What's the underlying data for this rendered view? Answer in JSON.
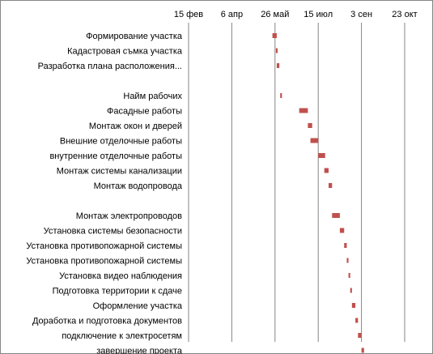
{
  "chart_data": {
    "type": "bar",
    "subtype": "gantt",
    "x_ticks": [
      "15 фев",
      "6 апр",
      "26 май",
      "15 июл",
      "3 сен",
      "23 окт"
    ],
    "tick_dates": [
      "2014-02-15",
      "2014-04-06",
      "2014-05-26",
      "2014-07-15",
      "2014-09-03",
      "2014-10-23"
    ],
    "xlim": [
      "2014-02-15",
      "2014-11-20"
    ],
    "bar_color": "#c0504d",
    "grid": true,
    "legend": "none",
    "tasks": [
      {
        "label": "Формирование участка",
        "start": "2014-05-23",
        "end": "2014-05-28"
      },
      {
        "label": "Кадастровая съмка участка",
        "start": "2014-05-27",
        "end": "2014-05-29"
      },
      {
        "label": "Разработка плана расположения...",
        "start": "2014-05-28",
        "end": "2014-05-31"
      },
      {
        "label": "",
        "start": null,
        "end": null
      },
      {
        "label": "Найм рабочих",
        "start": "2014-06-01",
        "end": "2014-06-03"
      },
      {
        "label": "Фасадные работы",
        "start": "2014-06-23",
        "end": "2014-07-03"
      },
      {
        "label": "Монтаж окон и дверей",
        "start": "2014-07-03",
        "end": "2014-07-08"
      },
      {
        "label": "Внешние отделочные работы",
        "start": "2014-07-06",
        "end": "2014-07-15"
      },
      {
        "label": "внутренние отделочные работы",
        "start": "2014-07-15",
        "end": "2014-07-23"
      },
      {
        "label": "Монтаж системы канализации",
        "start": "2014-07-22",
        "end": "2014-07-27"
      },
      {
        "label": "Монтаж водопровода",
        "start": "2014-07-27",
        "end": "2014-07-31"
      },
      {
        "label": "",
        "start": null,
        "end": null
      },
      {
        "label": "Монтаж электропроводов",
        "start": "2014-07-31",
        "end": "2014-08-09"
      },
      {
        "label": "Установка системы безопасности",
        "start": "2014-08-09",
        "end": "2014-08-14"
      },
      {
        "label": "Установка противопожарной системы",
        "start": "2014-08-14",
        "end": "2014-08-17"
      },
      {
        "label": "Установка противопожарной системы",
        "start": "2014-08-17",
        "end": "2014-08-19"
      },
      {
        "label": "Установка видео наблюдения",
        "start": "2014-08-19",
        "end": "2014-08-21"
      },
      {
        "label": "Подготовка территории к сдаче",
        "start": "2014-08-21",
        "end": "2014-08-23"
      },
      {
        "label": "Оформление участка",
        "start": "2014-08-23",
        "end": "2014-08-27"
      },
      {
        "label": "Доработка и подготовка документов",
        "start": "2014-08-27",
        "end": "2014-08-30"
      },
      {
        "label": "подключение к электросетям",
        "start": "2014-08-30",
        "end": "2014-09-03"
      },
      {
        "label": "завершение проекта",
        "start": "2014-09-03",
        "end": "2014-09-06"
      }
    ]
  }
}
